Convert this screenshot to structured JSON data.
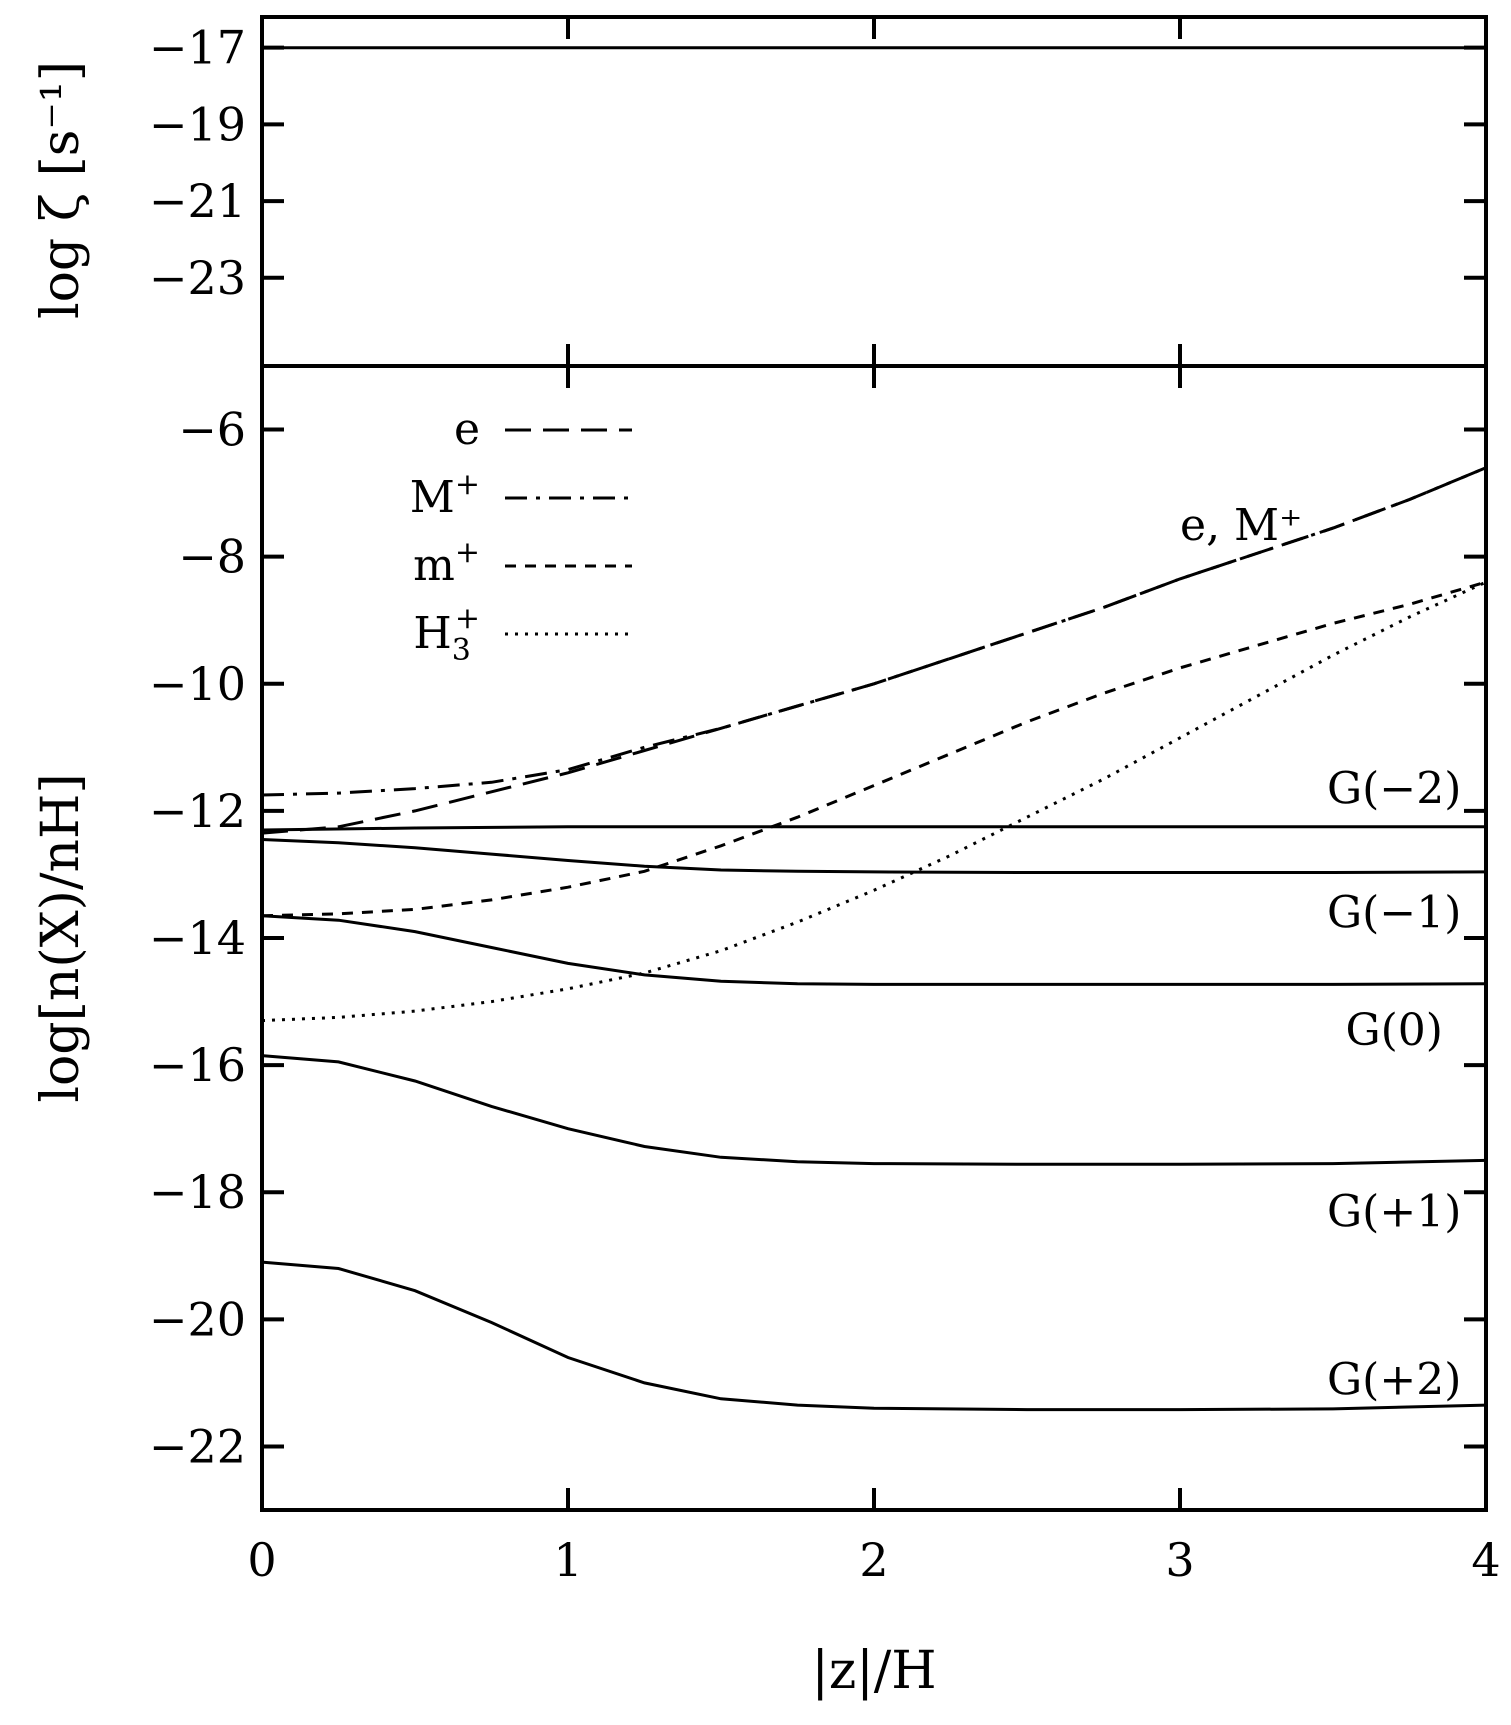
{
  "chart_data": [
    {
      "type": "line",
      "ylabel": "log ζ [s⁻¹]",
      "ylim": [
        -25.3,
        -16.2
      ],
      "yticks": [
        -17,
        -19,
        -21,
        -23
      ],
      "ytick_labels": [
        "−17",
        "−19",
        "−21",
        "−23"
      ],
      "series": [
        {
          "x": [
            0,
            4
          ],
          "values": [
            -17,
            -17
          ],
          "style": "solid"
        }
      ]
    },
    {
      "type": "line",
      "xlabel": "|z|/H",
      "ylabel": "log[n(X)/nH]",
      "xlim": [
        0,
        4
      ],
      "ylim": [
        -23,
        -5
      ],
      "xticks": [
        0,
        1,
        2,
        3,
        4
      ],
      "xtick_labels": [
        "0",
        "1",
        "2",
        "3",
        "4"
      ],
      "yticks": [
        -6,
        -8,
        -10,
        -12,
        -14,
        -16,
        -18,
        -20,
        -22
      ],
      "ytick_labels": [
        "−6",
        "−8",
        "−10",
        "−12",
        "−14",
        "−16",
        "−18",
        "−20",
        "−22"
      ],
      "legend_position": "top-left",
      "legend": [
        {
          "label": "e",
          "sup": "",
          "sub": "",
          "style": "longdash"
        },
        {
          "label": "M",
          "sup": "+",
          "sub": "",
          "style": "dashdot"
        },
        {
          "label": "m",
          "sup": "+",
          "sub": "",
          "style": "shortdash"
        },
        {
          "label": "H",
          "sup": "+",
          "sub": "3",
          "style": "dotted"
        }
      ],
      "annotations": [
        {
          "text": "e, M⁺",
          "x": 3.2,
          "y": -7.5
        },
        {
          "text": "G(−2)",
          "x": 3.7,
          "y": -11.65
        },
        {
          "text": "G(−1)",
          "x": 3.7,
          "y": -13.6
        },
        {
          "text": "G(0)",
          "x": 3.7,
          "y": -15.45
        },
        {
          "text": "G(+1)",
          "x": 3.7,
          "y": -18.3
        },
        {
          "text": "G(+2)",
          "x": 3.7,
          "y": -20.95
        }
      ],
      "series": [
        {
          "key": "e",
          "style": "longdash",
          "x": [
            0,
            0.25,
            0.5,
            0.75,
            1.0,
            1.25,
            1.5,
            1.75,
            2.0,
            2.25,
            2.5,
            2.75,
            3.0,
            3.25,
            3.5,
            3.75,
            4.0
          ],
          "values": [
            -12.35,
            -12.25,
            -12.0,
            -11.7,
            -11.4,
            -11.05,
            -10.7,
            -10.35,
            -10.0,
            -9.6,
            -9.2,
            -8.8,
            -8.35,
            -7.95,
            -7.55,
            -7.1,
            -6.6
          ]
        },
        {
          "key": "M+",
          "style": "dashdot",
          "x": [
            0,
            0.25,
            0.5,
            0.75,
            1.0,
            1.25,
            1.5,
            1.75,
            2.0,
            2.25,
            2.5,
            2.75,
            3.0,
            3.25,
            3.5,
            3.75,
            4.0
          ],
          "values": [
            -11.75,
            -11.72,
            -11.65,
            -11.55,
            -11.35,
            -11.0,
            -10.7,
            -10.35,
            -10.0,
            -9.6,
            -9.2,
            -8.8,
            -8.35,
            -7.95,
            -7.55,
            -7.1,
            -6.6
          ]
        },
        {
          "key": "m+",
          "style": "shortdash",
          "x": [
            0,
            0.25,
            0.5,
            0.75,
            1.0,
            1.25,
            1.5,
            1.75,
            2.0,
            2.25,
            2.5,
            2.75,
            3.0,
            3.25,
            3.5,
            3.75,
            4.0
          ],
          "values": [
            -13.65,
            -13.62,
            -13.55,
            -13.4,
            -13.2,
            -12.95,
            -12.55,
            -12.1,
            -11.6,
            -11.1,
            -10.6,
            -10.15,
            -9.75,
            -9.4,
            -9.05,
            -8.75,
            -8.4
          ]
        },
        {
          "key": "H3+",
          "style": "dotted",
          "x": [
            0,
            0.25,
            0.5,
            0.75,
            1.0,
            1.25,
            1.5,
            1.75,
            2.0,
            2.25,
            2.5,
            2.75,
            3.0,
            3.25,
            3.5,
            3.75,
            4.0
          ],
          "values": [
            -15.3,
            -15.25,
            -15.15,
            -15.0,
            -14.8,
            -14.55,
            -14.2,
            -13.75,
            -13.25,
            -12.7,
            -12.1,
            -11.5,
            -10.85,
            -10.2,
            -9.55,
            -8.95,
            -8.4
          ]
        },
        {
          "key": "G(-2)",
          "style": "solid",
          "x": [
            0,
            0.5,
            1.0,
            1.5,
            2.0,
            2.5,
            3.0,
            3.5,
            4.0
          ],
          "values": [
            -12.3,
            -12.27,
            -12.25,
            -12.25,
            -12.25,
            -12.25,
            -12.25,
            -12.25,
            -12.25
          ]
        },
        {
          "key": "G(-1)",
          "style": "solid",
          "x": [
            0,
            0.25,
            0.5,
            0.75,
            1.0,
            1.25,
            1.5,
            1.75,
            2.0,
            2.5,
            3.0,
            3.5,
            4.0
          ],
          "values": [
            -12.45,
            -12.5,
            -12.58,
            -12.68,
            -12.78,
            -12.87,
            -12.93,
            -12.95,
            -12.96,
            -12.97,
            -12.97,
            -12.97,
            -12.96
          ]
        },
        {
          "key": "G(0)",
          "style": "solid",
          "x": [
            0,
            0.25,
            0.5,
            0.75,
            1.0,
            1.25,
            1.5,
            1.75,
            2.0,
            2.5,
            3.0,
            3.5,
            4.0
          ],
          "values": [
            -13.65,
            -13.72,
            -13.9,
            -14.15,
            -14.4,
            -14.58,
            -14.68,
            -14.72,
            -14.73,
            -14.73,
            -14.73,
            -14.73,
            -14.72
          ]
        },
        {
          "key": "G(+1)",
          "style": "solid",
          "x": [
            0,
            0.25,
            0.5,
            0.75,
            1.0,
            1.25,
            1.5,
            1.75,
            2.0,
            2.5,
            3.0,
            3.5,
            4.0
          ],
          "values": [
            -15.85,
            -15.95,
            -16.25,
            -16.65,
            -17.0,
            -17.28,
            -17.45,
            -17.52,
            -17.55,
            -17.56,
            -17.56,
            -17.55,
            -17.5
          ]
        },
        {
          "key": "G(+2)",
          "style": "solid",
          "x": [
            0,
            0.25,
            0.5,
            0.75,
            1.0,
            1.25,
            1.5,
            1.75,
            2.0,
            2.5,
            3.0,
            3.5,
            4.0
          ],
          "values": [
            -19.1,
            -19.2,
            -19.55,
            -20.05,
            -20.6,
            -21.0,
            -21.25,
            -21.35,
            -21.4,
            -21.42,
            -21.42,
            -21.41,
            -21.35
          ]
        }
      ]
    }
  ]
}
